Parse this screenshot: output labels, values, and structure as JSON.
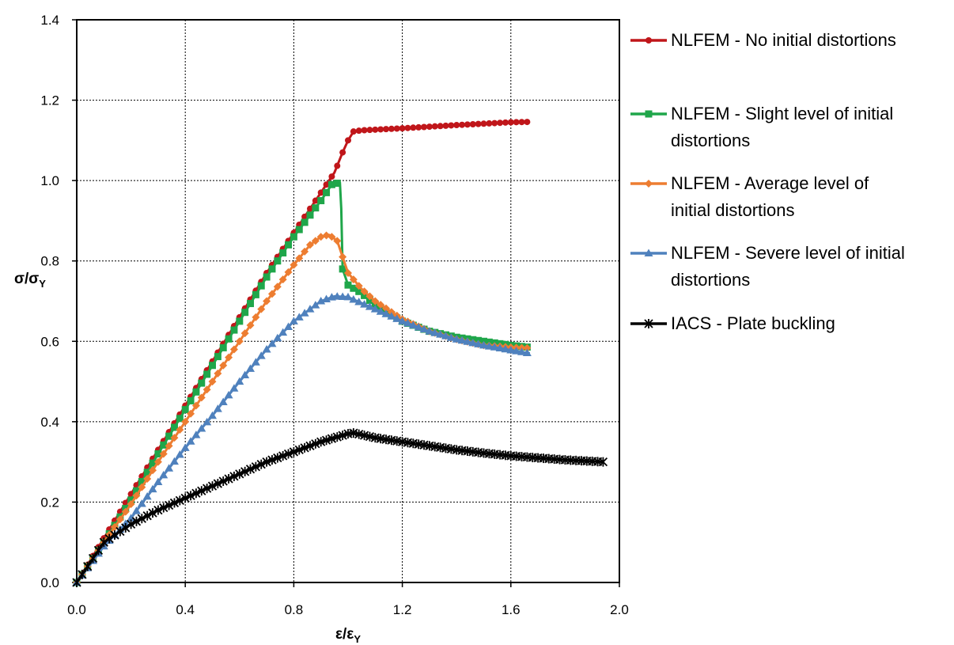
{
  "chart_data": {
    "type": "line",
    "title": "",
    "xlabel": {
      "main": "ε/ε",
      "sub": "Y"
    },
    "ylabel": {
      "main": "σ/σ",
      "sub": "Y"
    },
    "xlim": [
      0,
      2.0
    ],
    "ylim": [
      0,
      1.4
    ],
    "xticks": [
      "0.0",
      "0.4",
      "0.8",
      "1.2",
      "1.6",
      "2.0"
    ],
    "yticks": [
      "0.0",
      "0.2",
      "0.4",
      "0.6",
      "0.8",
      "1.0",
      "1.2",
      "1.4"
    ],
    "grid": true,
    "legend_position": "right",
    "series": [
      {
        "name_lines": [
          "NLFEM - No initial distortions"
        ],
        "color": "#c0161a",
        "marker": "circle",
        "x": [
          0,
          0.1,
          0.2,
          0.3,
          0.4,
          0.5,
          0.6,
          0.7,
          0.8,
          0.9,
          0.95,
          0.98,
          1.0,
          1.02,
          1.05,
          1.2,
          1.4,
          1.6,
          1.67
        ],
        "y": [
          0,
          0.11,
          0.22,
          0.33,
          0.44,
          0.55,
          0.66,
          0.77,
          0.87,
          0.97,
          1.02,
          1.07,
          1.1,
          1.122,
          1.125,
          1.13,
          1.138,
          1.145,
          1.146
        ]
      },
      {
        "name_lines": [
          "NLFEM - Slight level of initial",
          "distortions"
        ],
        "color": "#1fa64a",
        "marker": "square",
        "x": [
          0,
          0.1,
          0.2,
          0.3,
          0.4,
          0.5,
          0.6,
          0.7,
          0.8,
          0.9,
          0.94,
          0.97,
          0.975,
          0.98,
          0.99,
          1.0,
          1.05,
          1.1,
          1.2,
          1.3,
          1.4,
          1.5,
          1.6,
          1.67
        ],
        "y": [
          0,
          0.1,
          0.205,
          0.32,
          0.43,
          0.54,
          0.65,
          0.76,
          0.86,
          0.95,
          0.99,
          0.995,
          0.93,
          0.78,
          0.76,
          0.74,
          0.72,
          0.69,
          0.65,
          0.625,
          0.61,
          0.6,
          0.59,
          0.585
        ]
      },
      {
        "name_lines": [
          "NLFEM - Average level of",
          "initial distortions"
        ],
        "color": "#ed7d31",
        "marker": "diamond",
        "x": [
          0,
          0.1,
          0.2,
          0.3,
          0.4,
          0.5,
          0.6,
          0.7,
          0.8,
          0.86,
          0.9,
          0.93,
          0.96,
          0.98,
          1.0,
          1.05,
          1.1,
          1.2,
          1.3,
          1.4,
          1.5,
          1.6,
          1.67
        ],
        "y": [
          0,
          0.1,
          0.195,
          0.3,
          0.4,
          0.5,
          0.6,
          0.7,
          0.79,
          0.84,
          0.86,
          0.865,
          0.85,
          0.81,
          0.77,
          0.73,
          0.7,
          0.655,
          0.625,
          0.605,
          0.59,
          0.585,
          0.583
        ]
      },
      {
        "name_lines": [
          "NLFEM - Severe level of initial",
          "distortions"
        ],
        "color": "#4f81bd",
        "marker": "triangle",
        "x": [
          0,
          0.1,
          0.2,
          0.3,
          0.4,
          0.5,
          0.6,
          0.7,
          0.8,
          0.9,
          0.95,
          1.0,
          1.05,
          1.1,
          1.2,
          1.3,
          1.4,
          1.5,
          1.6,
          1.67
        ],
        "y": [
          0,
          0.09,
          0.16,
          0.25,
          0.335,
          0.415,
          0.5,
          0.58,
          0.65,
          0.7,
          0.712,
          0.71,
          0.695,
          0.68,
          0.65,
          0.625,
          0.605,
          0.59,
          0.578,
          0.57
        ]
      },
      {
        "name_lines": [
          "IACS - Plate buckling"
        ],
        "color": "#000000",
        "marker": "star",
        "x": [
          0,
          0.05,
          0.1,
          0.2,
          0.3,
          0.4,
          0.5,
          0.6,
          0.7,
          0.8,
          0.9,
          1.0,
          1.02,
          1.1,
          1.2,
          1.3,
          1.4,
          1.5,
          1.6,
          1.7,
          1.8,
          1.94
        ],
        "y": [
          0,
          0.05,
          0.1,
          0.145,
          0.18,
          0.21,
          0.24,
          0.27,
          0.3,
          0.325,
          0.35,
          0.37,
          0.372,
          0.36,
          0.35,
          0.34,
          0.33,
          0.322,
          0.315,
          0.31,
          0.305,
          0.3
        ]
      }
    ]
  }
}
